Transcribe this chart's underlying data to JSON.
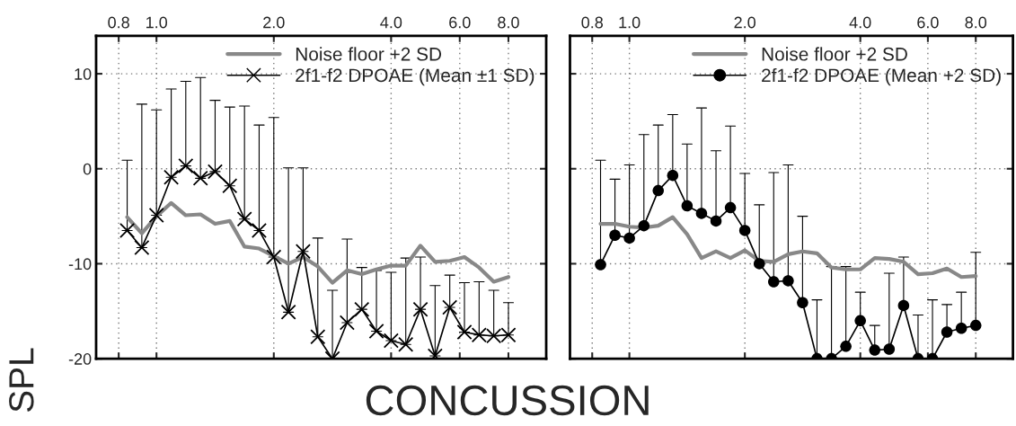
{
  "chart_data": [
    {
      "type": "line",
      "xlabel": "CONCUSSION",
      "ylabel": "SPL",
      "log": "x",
      "xlim": [
        0.7,
        10
      ],
      "xticks": [
        {
          "value": 0.8,
          "label": "0.8"
        },
        {
          "value": 1.0,
          "label": "1.0"
        },
        {
          "value": 2.0,
          "label": "2.0"
        },
        {
          "value": 4.0,
          "label": "4.0"
        },
        {
          "value": 6.0,
          "label": "6.0"
        },
        {
          "value": 8.0,
          "label": "8.0"
        }
      ],
      "ylim": [
        -20,
        14
      ],
      "yticks": [
        -20,
        -10,
        0,
        10
      ],
      "grid": true,
      "legend": "top right",
      "x": [
        0.841,
        0.917,
        1.0,
        1.091,
        1.189,
        1.297,
        1.414,
        1.542,
        1.682,
        1.834,
        2.0,
        2.181,
        2.378,
        2.594,
        2.828,
        3.084,
        3.364,
        3.668,
        4.0,
        4.362,
        4.757,
        5.187,
        5.657,
        6.169,
        6.727,
        7.336,
        8.0
      ],
      "series": [
        {
          "name": "Noise floor +2 SD",
          "color": "#888888",
          "marker": "none",
          "values": [
            -5.1,
            -6.8,
            -5.0,
            -3.6,
            -4.9,
            -4.8,
            -5.8,
            -5.5,
            -8.2,
            -8.4,
            -9.2,
            -10.0,
            -9.3,
            -10.3,
            -12.0,
            -10.7,
            -11.1,
            -10.6,
            -10.2,
            -10.2,
            -8.1,
            -9.8,
            -9.7,
            -9.3,
            -10.4,
            -11.9,
            -11.4
          ]
        },
        {
          "name": "2f1-f2 DPOAE (Mean ±1 SD)",
          "color": "#000000",
          "marker": "cross",
          "values": [
            -6.5,
            -8.3,
            -4.9,
            -0.9,
            0.3,
            -1.0,
            -0.3,
            -1.8,
            -5.3,
            -6.5,
            -9.3,
            -15.1,
            -8.7,
            -17.7,
            -20,
            -16.2,
            -14.8,
            -17.1,
            -18.1,
            -18.5,
            -14.8,
            -19.7,
            -14.6,
            -17.2,
            -17.5,
            -17.6,
            -17.5
          ],
          "errors": [
            [
              -6.5,
              0.9
            ],
            [
              -8.3,
              6.8
            ],
            [
              -4.9,
              6.2
            ],
            [
              -0.9,
              8.4
            ],
            [
              0.3,
              9.2
            ],
            [
              -1.0,
              9.6
            ],
            [
              -0.3,
              7.2
            ],
            [
              -1.8,
              6.5
            ],
            [
              -5.3,
              6.6
            ],
            [
              -6.5,
              4.6
            ],
            [
              -9.3,
              5.4
            ],
            [
              -15.1,
              0.1
            ],
            [
              -8.7,
              0.1
            ],
            [
              -17.7,
              -7.3
            ],
            [
              -20,
              -12.8
            ],
            [
              -16.2,
              -7.4
            ],
            [
              -14.8,
              -10.4
            ],
            [
              -17.1,
              -10.7
            ],
            [
              -18.1,
              -10.9
            ],
            [
              -18.5,
              -9.4
            ],
            [
              -14.8,
              -9.3
            ],
            [
              -19.7,
              -12.3
            ],
            [
              -14.6,
              -11.2
            ],
            [
              -17.2,
              -12.0
            ],
            [
              -17.5,
              -11.9
            ],
            [
              -17.6,
              -12.8
            ],
            [
              -17.5,
              -14.1
            ]
          ]
        }
      ]
    },
    {
      "type": "line",
      "log": "x",
      "xlim": [
        0.7,
        10
      ],
      "xticks": [
        {
          "value": 0.8,
          "label": "0.8"
        },
        {
          "value": 1.0,
          "label": "1.0"
        },
        {
          "value": 2.0,
          "label": "2.0"
        },
        {
          "value": 4.0,
          "label": "4.0"
        },
        {
          "value": 6.0,
          "label": "6.0"
        },
        {
          "value": 8.0,
          "label": "8.0"
        }
      ],
      "ylim": [
        -20,
        14
      ],
      "yticks": [
        -20,
        -10,
        0,
        10
      ],
      "tick_labels": "x",
      "grid": true,
      "legend": "top right",
      "x": [
        0.841,
        0.917,
        1.0,
        1.091,
        1.189,
        1.297,
        1.414,
        1.542,
        1.682,
        1.834,
        2.0,
        2.181,
        2.378,
        2.594,
        2.828,
        3.084,
        3.364,
        3.668,
        4.0,
        4.362,
        4.757,
        5.187,
        5.657,
        6.169,
        6.727,
        7.336,
        8.0
      ],
      "series": [
        {
          "name": "Noise floor +2 SD",
          "color": "#888888",
          "marker": "none",
          "values": [
            -5.8,
            -5.8,
            -6.1,
            -6.2,
            -6.0,
            -5.1,
            -6.9,
            -9.4,
            -8.7,
            -9.4,
            -8.6,
            -9.7,
            -9.8,
            -9.0,
            -8.7,
            -8.9,
            -10.4,
            -10.6,
            -10.6,
            -9.4,
            -9.5,
            -9.8,
            -11.1,
            -11.0,
            -10.5,
            -11.4,
            -11.3
          ]
        },
        {
          "name": "2f1-f2 DPOAE (Mean +2 SD)",
          "color": "#000000",
          "marker": "circle",
          "values": [
            -10.1,
            -7.0,
            -7.3,
            -6.0,
            -2.3,
            -0.7,
            -3.9,
            -4.7,
            -5.5,
            -4.1,
            -6.5,
            -10.0,
            -11.9,
            -11.8,
            -14.1,
            -20,
            -20,
            -18.7,
            -16.0,
            -19.1,
            -19.0,
            -14.4,
            -20,
            -20,
            -17.2,
            -16.8,
            -16.5
          ],
          "errors": [
            [
              -10.1,
              0.9
            ],
            [
              -7.0,
              -1.1
            ],
            [
              -7.3,
              0.4
            ],
            [
              -6.0,
              3.6
            ],
            [
              -2.3,
              4.6
            ],
            [
              -0.7,
              5.7
            ],
            [
              -3.9,
              2.6
            ],
            [
              -4.7,
              6.4
            ],
            [
              -5.5,
              1.9
            ],
            [
              -4.1,
              4.5
            ],
            [
              -6.5,
              -0.5
            ],
            [
              -10.0,
              -3.8
            ],
            [
              -11.9,
              -0.4
            ],
            [
              -11.8,
              0.4
            ],
            [
              -14.1,
              -5.0
            ],
            [
              -20,
              -13.8
            ],
            [
              -20,
              -10.3
            ],
            [
              -18.7,
              -10.3
            ],
            [
              -16.0,
              -13.0
            ],
            [
              -19.1,
              -16.5
            ],
            [
              -19.0,
              -11.0
            ],
            [
              -14.4,
              -9.3
            ],
            [
              -20,
              -15.4
            ],
            [
              -20,
              -13.8
            ],
            [
              -17.2,
              -14.3
            ],
            [
              -16.8,
              -13.0
            ],
            [
              -16.5,
              -8.8
            ]
          ]
        }
      ]
    }
  ]
}
